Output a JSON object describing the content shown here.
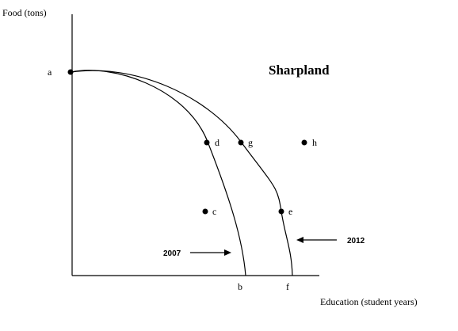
{
  "figure": {
    "title": "Sharpland",
    "y_axis_label": "Food (tons)",
    "x_axis_label": "Education (student years)",
    "curves": {
      "year_2007_label": "2007",
      "year_2012_label": "2012"
    },
    "points": {
      "a": "a",
      "b": "b",
      "c": "c",
      "d": "d",
      "e": "e",
      "f": "f",
      "g": "g",
      "h": "h"
    }
  }
}
